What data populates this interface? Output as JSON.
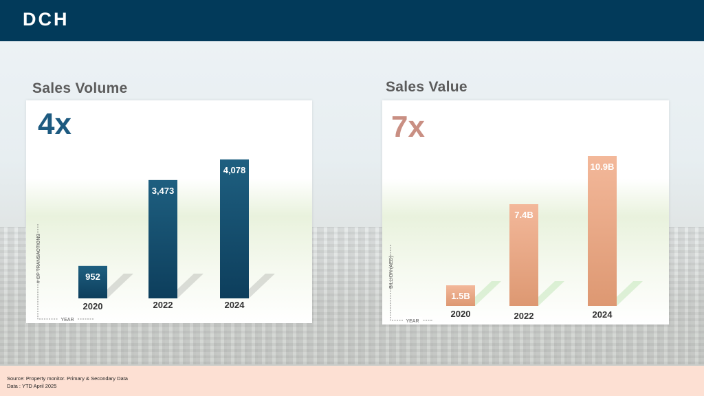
{
  "header": {
    "logo": "DCH",
    "bg_color": "#023a5a"
  },
  "panels": [
    {
      "title": "Sales Volume",
      "multiplier": "4x",
      "multiplier_color": "#1d5a80",
      "bar_color_top": "#1e5f80",
      "bar_color_bottom": "#0d3e5c"
    },
    {
      "title": "Sales Value",
      "multiplier": "7x",
      "multiplier_color": "#c98f83",
      "bar_color_top": "#f3b89a",
      "bar_color_bottom": "#dd9872"
    }
  ],
  "chart_data": [
    {
      "type": "bar",
      "categories": [
        "2020",
        "2022",
        "2024"
      ],
      "values": [
        952,
        3473,
        4078
      ],
      "data_labels": [
        "952",
        "3,473",
        "4,078"
      ],
      "xlabel": "YEAR",
      "ylabel": "# OF TRANSACTIONS",
      "ylim": [
        0,
        4600
      ],
      "grid": false,
      "legend": "none"
    },
    {
      "type": "bar",
      "categories": [
        "2020",
        "2022",
        "2024"
      ],
      "values": [
        1.5,
        7.4,
        10.9
      ],
      "data_labels": [
        "1.5B",
        "7.4B",
        "10.9B"
      ],
      "xlabel": "YEAR",
      "ylabel": "BILLION (AED)",
      "ylim": [
        0,
        12.2
      ],
      "grid": false,
      "legend": "none"
    }
  ],
  "footer": {
    "source": "Source: Property monitor. Primary & Secondary Data",
    "data_note": "Data : YTD April 2025"
  }
}
